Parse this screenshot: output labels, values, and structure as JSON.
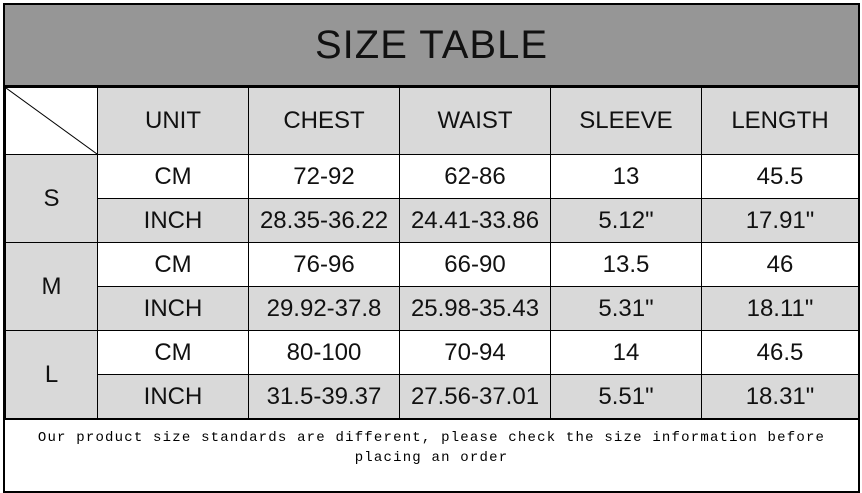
{
  "title": "SIZE TABLE",
  "headers": [
    "UNIT",
    "CHEST",
    "WAIST",
    "SLEEVE",
    "LENGTH"
  ],
  "sizes": [
    {
      "size": "S",
      "cm": [
        "CM",
        "72-92",
        "62-86",
        "13",
        "45.5"
      ],
      "inch": [
        "INCH",
        "28.35-36.22",
        "24.41-33.86",
        "5.12\"",
        "17.91\""
      ]
    },
    {
      "size": "M",
      "cm": [
        "CM",
        "76-96",
        "66-90",
        "13.5",
        "46"
      ],
      "inch": [
        "INCH",
        "29.92-37.8",
        "25.98-35.43",
        "5.31\"",
        "18.11\""
      ]
    },
    {
      "size": "L",
      "cm": [
        "CM",
        "80-100",
        "70-94",
        "14",
        "46.5"
      ],
      "inch": [
        "INCH",
        "31.5-39.37",
        "27.56-37.01",
        "5.51\"",
        "18.31\""
      ]
    }
  ],
  "footer_note": "Our product size standards are different, please check the size information before placing an order",
  "colors": {
    "title_bg": "#969696",
    "cell_gray": "#d9d9d9"
  }
}
